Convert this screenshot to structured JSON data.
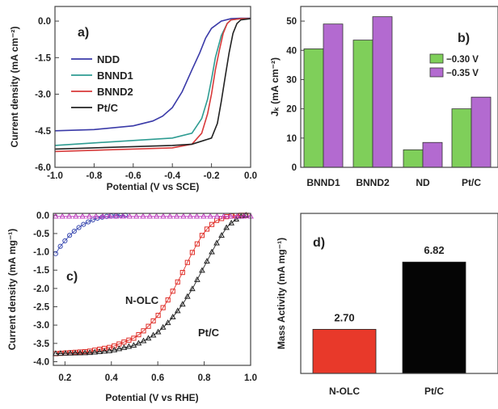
{
  "chart_data": [
    {
      "panel": "a)",
      "type": "line",
      "xlabel": "Potential (V vs SCE)",
      "ylabel": "Current density (mA cm⁻²)",
      "xlim": [
        -1.0,
        0.0
      ],
      "ylim": [
        -6.0,
        0.6
      ],
      "xticks": [
        -1.0,
        -0.8,
        -0.6,
        -0.4,
        -0.2,
        0.0
      ],
      "xtick_labels": [
        "-1.0",
        "-0.8",
        "-0.6",
        "-0.4",
        "-0.2",
        "0.0"
      ],
      "yticks": [
        0.0,
        -1.5,
        -3.0,
        -4.5,
        -6.0
      ],
      "ytick_labels": [
        "0.0",
        "-1.5",
        "-3.0",
        "-4.5",
        "-6.0"
      ],
      "legend_position": "top-left",
      "series": [
        {
          "name": "NDD",
          "color": "#3a3aa8",
          "x": [
            -1.0,
            -0.8,
            -0.6,
            -0.5,
            -0.45,
            -0.4,
            -0.35,
            -0.3,
            -0.26,
            -0.23,
            -0.2,
            -0.15,
            -0.1,
            -0.05,
            0.0
          ],
          "y": [
            -4.5,
            -4.45,
            -4.3,
            -4.1,
            -3.9,
            -3.55,
            -2.9,
            -2.0,
            -1.3,
            -0.7,
            -0.3,
            0.0,
            0.1,
            0.12,
            0.12
          ]
        },
        {
          "name": "BNND1",
          "color": "#2e9c92",
          "x": [
            -1.0,
            -0.8,
            -0.6,
            -0.4,
            -0.3,
            -0.25,
            -0.22,
            -0.2,
            -0.18,
            -0.15,
            -0.12,
            -0.1,
            -0.05,
            0.0
          ],
          "y": [
            -5.1,
            -5.0,
            -4.9,
            -4.8,
            -4.6,
            -4.0,
            -3.2,
            -2.4,
            -1.5,
            -0.6,
            -0.1,
            0.05,
            0.1,
            0.1
          ]
        },
        {
          "name": "BNND2",
          "color": "#d83a3a",
          "x": [
            -1.0,
            -0.8,
            -0.6,
            -0.4,
            -0.3,
            -0.25,
            -0.22,
            -0.2,
            -0.18,
            -0.16,
            -0.14,
            -0.12,
            -0.1,
            -0.05,
            0.0
          ],
          "y": [
            -5.35,
            -5.3,
            -5.25,
            -5.2,
            -5.05,
            -4.6,
            -3.8,
            -3.0,
            -2.0,
            -1.2,
            -0.5,
            -0.1,
            0.05,
            0.1,
            0.1
          ]
        },
        {
          "name": "Pt/C",
          "color": "#222222",
          "x": [
            -1.0,
            -0.8,
            -0.6,
            -0.4,
            -0.3,
            -0.2,
            -0.17,
            -0.15,
            -0.13,
            -0.11,
            -0.09,
            -0.07,
            -0.05,
            0.0
          ],
          "y": [
            -5.25,
            -5.2,
            -5.15,
            -5.1,
            -5.05,
            -4.8,
            -4.2,
            -3.3,
            -2.3,
            -1.3,
            -0.5,
            -0.1,
            0.05,
            0.1
          ]
        }
      ]
    },
    {
      "panel": "b)",
      "type": "bar",
      "ylabel": "Jₖ (mA cm⁻²)",
      "ylim": [
        0,
        55
      ],
      "yticks": [
        0,
        10,
        20,
        30,
        40,
        50
      ],
      "ytick_labels": [
        "0",
        "10",
        "20",
        "30",
        "40",
        "50"
      ],
      "categories": [
        "BNND1",
        "BNND2",
        "ND",
        "Pt/C"
      ],
      "legend_position": "right",
      "series": [
        {
          "name": "−0.30 V",
          "color": "#7fcf5a",
          "values": [
            40.5,
            43.5,
            6.0,
            20.0
          ]
        },
        {
          "name": "−0.35 V",
          "color": "#b36ad0",
          "values": [
            49.0,
            51.5,
            8.5,
            24.0
          ]
        }
      ]
    },
    {
      "panel": "c)",
      "type": "line",
      "xlabel": "Potential (V vs RHE)",
      "ylabel": "Current density (mA mg⁻¹)",
      "xlim": [
        0.15,
        1.0
      ],
      "ylim": [
        -4.1,
        0.05
      ],
      "xticks": [
        0.2,
        0.4,
        0.6,
        0.8,
        1.0
      ],
      "xtick_labels": [
        "0.2",
        "0.4",
        "0.6",
        "0.8",
        "1.0"
      ],
      "yticks": [
        0.0,
        -0.5,
        -1.0,
        -1.5,
        -2.0,
        -2.5,
        -3.0,
        -3.5,
        -4.0
      ],
      "ytick_labels": [
        "0.0",
        "-0.5",
        "-1.0",
        "-1.5",
        "-2.0",
        "-2.5",
        "-3.0",
        "-3.5",
        "-4.0"
      ],
      "annotations": [
        "N-OLC",
        "Pt/C"
      ],
      "series": [
        {
          "name": "N-OLC",
          "color": "#e0302a",
          "marker": "square",
          "x": [
            0.16,
            0.3,
            0.4,
            0.5,
            0.55,
            0.6,
            0.65,
            0.7,
            0.75,
            0.8,
            0.85,
            0.9,
            0.95,
            0.98
          ],
          "y": [
            -3.78,
            -3.72,
            -3.6,
            -3.35,
            -3.1,
            -2.75,
            -2.25,
            -1.65,
            -1.0,
            -0.45,
            -0.15,
            -0.03,
            0.0,
            0.0
          ]
        },
        {
          "name": "Pt/C",
          "color": "#222222",
          "marker": "triangle",
          "x": [
            0.16,
            0.3,
            0.4,
            0.5,
            0.55,
            0.6,
            0.65,
            0.7,
            0.75,
            0.8,
            0.85,
            0.9,
            0.95,
            0.98
          ],
          "y": [
            -3.78,
            -3.76,
            -3.7,
            -3.55,
            -3.4,
            -3.2,
            -2.9,
            -2.5,
            -2.0,
            -1.4,
            -0.8,
            -0.3,
            -0.05,
            0.0
          ]
        },
        {
          "marker": "circle",
          "color": "#3a4ab0",
          "x": [
            0.16,
            0.18,
            0.2,
            0.22,
            0.25,
            0.28,
            0.31,
            0.34,
            0.37,
            0.4,
            0.43,
            0.46
          ],
          "y": [
            -1.05,
            -0.85,
            -0.7,
            -0.55,
            -0.38,
            -0.25,
            -0.15,
            -0.08,
            -0.04,
            -0.02,
            -0.01,
            0.0
          ]
        },
        {
          "marker": "triangle",
          "color": "#c040c0",
          "x": [
            0.16,
            0.25,
            0.35,
            0.45,
            0.55,
            0.65,
            0.75,
            0.85,
            0.95,
            1.0
          ],
          "y": [
            -0.03,
            -0.03,
            -0.03,
            -0.03,
            -0.03,
            -0.03,
            -0.03,
            -0.03,
            -0.03,
            -0.03
          ]
        }
      ]
    },
    {
      "panel": "d)",
      "type": "bar",
      "ylabel": "Mass Activity (mA mg⁻¹)",
      "categories": [
        "N-OLC",
        "Pt/C"
      ],
      "values": [
        2.7,
        6.82
      ],
      "value_labels": [
        "2.70",
        "6.82"
      ],
      "colors": [
        "#e8392a",
        "#050505"
      ],
      "ylim": [
        0,
        9.8
      ]
    }
  ]
}
